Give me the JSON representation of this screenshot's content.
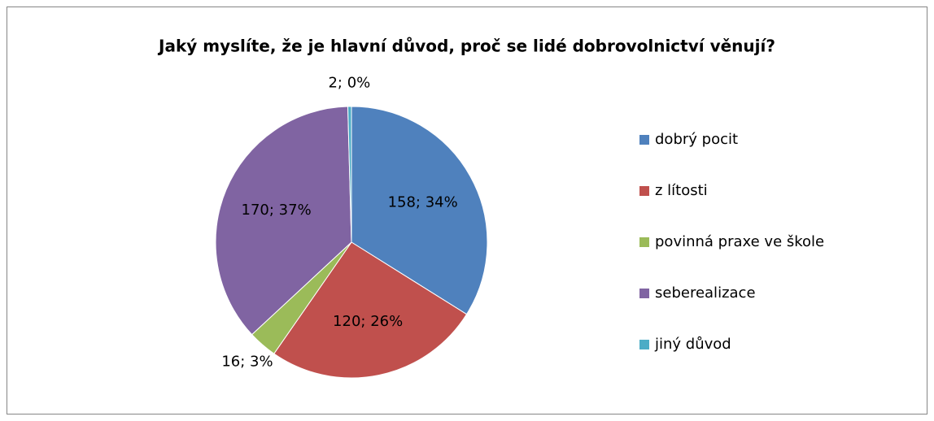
{
  "chart_data": {
    "type": "pie",
    "title": "Jaký myslíte, že je hlavní důvod, proč se lidé dobrovolnictví věnují?",
    "categories": [
      "dobrý pocit",
      "z lítosti",
      "povinná praxe ve škole",
      "seberealizace",
      "jiný důvod"
    ],
    "values": [
      158,
      120,
      16,
      170,
      2
    ],
    "value_labels": [
      "158; 34%",
      "120; 26%",
      "16; 3%",
      "170; 37%",
      "2; 0%"
    ],
    "colors": [
      "#4f81bd",
      "#c0504d",
      "#9bbb59",
      "#8064a2",
      "#4bacc6"
    ],
    "legend": "right"
  }
}
